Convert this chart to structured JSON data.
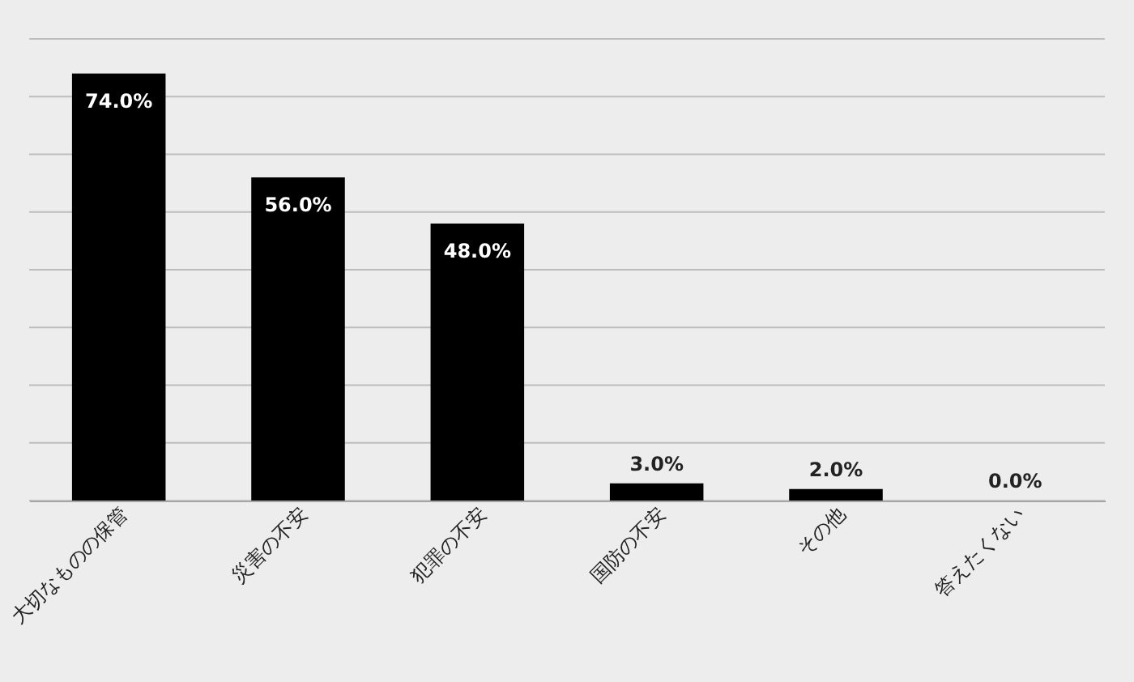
{
  "chart_data": {
    "type": "bar",
    "categories": [
      "大切なものの保管",
      "災害の不安",
      "犯罪の不安",
      "国防の不安",
      "その他",
      "答えたくない"
    ],
    "values": [
      74.0,
      56.0,
      48.0,
      3.0,
      2.0,
      0.0
    ],
    "value_labels": [
      "74.0%",
      "56.0%",
      "48.0%",
      "3.0%",
      "2.0%",
      "0.0%"
    ],
    "color": "#000000",
    "ylim": [
      0,
      80
    ],
    "yticks": [
      {
        "value": 0,
        "label": null
      },
      {
        "value": 10,
        "label": null
      },
      {
        "value": 20,
        "label": null
      },
      {
        "value": 30,
        "label": null
      },
      {
        "value": 40,
        "label": null
      },
      {
        "value": 50,
        "label": null
      },
      {
        "value": 60,
        "label": null
      },
      {
        "value": 70,
        "label": null
      },
      {
        "value": 80,
        "label": null
      }
    ],
    "grid": "y",
    "tick_labels": "x"
  }
}
